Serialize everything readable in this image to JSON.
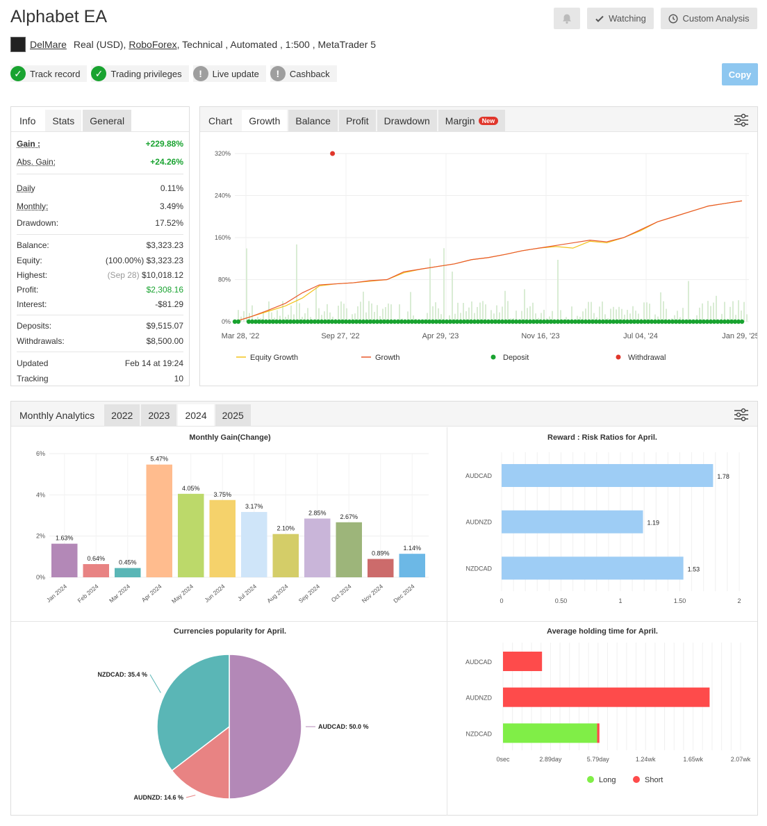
{
  "header": {
    "title": "Alphabet EA",
    "watching_label": "Watching",
    "custom_analysis_label": "Custom Analysis",
    "copy_label": "Copy"
  },
  "meta": {
    "user": "DelMare",
    "account": "Real (USD),",
    "broker": "RoboForex",
    "rest": ", Technical , Automated , 1:500 , MetaTrader 5"
  },
  "badges": [
    {
      "label": "Track record",
      "status": "verified"
    },
    {
      "label": "Trading privileges",
      "status": "verified"
    },
    {
      "label": "Live update",
      "status": "warning"
    },
    {
      "label": "Cashback",
      "status": "warning"
    }
  ],
  "colors": {
    "green": "#19a330",
    "warning": "#9e9e9e",
    "copy": "#8ec7f0"
  },
  "stats_tabs": [
    "Info",
    "Stats",
    "General"
  ],
  "stats": {
    "gain_label": "Gain :",
    "gain": "+229.88%",
    "abs_gain_label": "Abs. Gain:",
    "abs_gain": "+24.26%",
    "daily_label": "Daily",
    "daily": "0.11%",
    "monthly_label": "Monthly:",
    "monthly": "3.49%",
    "drawdown_label": "Drawdown:",
    "drawdown": "17.52%",
    "balance_label": "Balance:",
    "balance": "$3,323.23",
    "equity_label": "Equity:",
    "equity_pct": "(100.00%)",
    "equity": "$3,323.23",
    "highest_label": "Highest:",
    "highest_date": "(Sep 28)",
    "highest": "$10,018.12",
    "profit_label": "Profit:",
    "profit": "$2,308.16",
    "interest_label": "Interest:",
    "interest": "-$81.29",
    "deposits_label": "Deposits:",
    "deposits": "$9,515.07",
    "withdrawals_label": "Withdrawals:",
    "withdrawals": "$8,500.00",
    "updated_label": "Updated",
    "updated": "Feb 14 at 19:24",
    "tracking_label": "Tracking",
    "tracking": "10"
  },
  "chart_tabs": {
    "label": "Chart",
    "tabs": [
      "Growth",
      "Balance",
      "Profit",
      "Drawdown",
      "Margin"
    ],
    "new_tag": "New"
  },
  "analytics_tabs": {
    "label": "Monthly Analytics",
    "tabs": [
      "2022",
      "2023",
      "2024",
      "2025"
    ]
  },
  "chart_data": [
    {
      "type": "line",
      "y_ticks": [
        "320%",
        "240%",
        "160%",
        "80%",
        "0%"
      ],
      "x_ticks": [
        "Mar 28, '22",
        "Sep 27, '22",
        "Apr 29, '23",
        "Nov 16, '23",
        "Jul 04, '24",
        "Jan 29, '25"
      ],
      "ylim": [
        0,
        320
      ],
      "legend": [
        "Equity Growth",
        "Growth",
        "Deposit",
        "Withdrawal"
      ],
      "series": [
        {
          "name": "Growth",
          "values": [
            0,
            10,
            22,
            35,
            55,
            70,
            72,
            74,
            78,
            80,
            95,
            100,
            105,
            110,
            118,
            122,
            128,
            135,
            140,
            145,
            150,
            155,
            152,
            160,
            175,
            190,
            200,
            210,
            220,
            225,
            229.88
          ]
        },
        {
          "name": "Equity Growth",
          "values": [
            0,
            10,
            20,
            30,
            45,
            68,
            72,
            74,
            77,
            80,
            93,
            100,
            105,
            110,
            118,
            122,
            128,
            135,
            140,
            143,
            140,
            153,
            150,
            160,
            173,
            190,
            200,
            210,
            220,
            225,
            229.88
          ]
        }
      ],
      "colors": {
        "growth": "#e8582b",
        "equity": "#f2c21b",
        "deposit": "#19a330",
        "withdrawal": "#e0362b"
      },
      "withdrawal_point": {
        "x_fraction": 0.19,
        "value": 320
      }
    },
    {
      "type": "bar",
      "title": "Monthly Gain(Change)",
      "categories": [
        "Jan 2024",
        "Feb 2024",
        "Mar 2024",
        "Apr 2024",
        "May 2024",
        "Jun 2024",
        "Jul 2024",
        "Aug 2024",
        "Sep 2024",
        "Oct 2024",
        "Nov 2024",
        "Dec 2024"
      ],
      "values": [
        1.63,
        0.64,
        0.45,
        5.47,
        4.05,
        3.75,
        3.17,
        2.1,
        2.85,
        2.67,
        0.89,
        1.14
      ],
      "labels": [
        "1.63%",
        "0.64%",
        "0.45%",
        "5.47%",
        "4.05%",
        "3.75%",
        "3.17%",
        "2.10%",
        "2.85%",
        "2.67%",
        "0.89%",
        "1.14%"
      ],
      "colors": [
        "#b388b7",
        "#e88383",
        "#5ab6b6",
        "#ffbc8e",
        "#bcd96a",
        "#f5d26b",
        "#cfe5f9",
        "#d4cd68",
        "#c9b5d9",
        "#9db57a",
        "#cc6b6b",
        "#6cb8e6"
      ],
      "y_ticks": [
        "6%",
        "4%",
        "2%",
        "0%"
      ],
      "ylim": [
        0,
        6
      ]
    },
    {
      "type": "bar",
      "title": "Reward : Risk Ratios for April.",
      "categories": [
        "AUDCAD",
        "AUDNZD",
        "NZDCAD"
      ],
      "values": [
        1.78,
        1.19,
        1.53
      ],
      "labels": [
        "1.78",
        "1.19",
        "1.53"
      ],
      "x_ticks": [
        "0",
        "0.50",
        "1",
        "1.50",
        "2"
      ],
      "xlim": [
        0,
        2
      ],
      "color": "#9ecdf5"
    },
    {
      "type": "pie",
      "title": "Currencies popularity for April.",
      "slices": [
        {
          "label": "AUDCAD: 50.0 %",
          "value": 50.0,
          "color": "#b388b7"
        },
        {
          "label": "AUDNZD: 14.6 %",
          "value": 14.6,
          "color": "#e88383"
        },
        {
          "label": "NZDCAD: 35.4 %",
          "value": 35.4,
          "color": "#5ab6b6"
        }
      ]
    },
    {
      "type": "bar",
      "title": "Average holding time for April.",
      "categories": [
        "AUDCAD",
        "AUDNZD",
        "NZDCAD"
      ],
      "x_ticks": [
        "0sec",
        "2.89day",
        "5.79day",
        "1.24wk",
        "1.65wk",
        "2.07wk"
      ],
      "xlim_weeks": [
        0,
        2.07
      ],
      "series": [
        {
          "name": "Long",
          "values_weeks": [
            0,
            0,
            0.82
          ],
          "color": "#80ee47"
        },
        {
          "name": "Short",
          "values_weeks": [
            0.34,
            1.8,
            0.02
          ],
          "color": "#fe4b4b"
        }
      ],
      "legend": [
        "Long",
        "Short"
      ]
    }
  ]
}
